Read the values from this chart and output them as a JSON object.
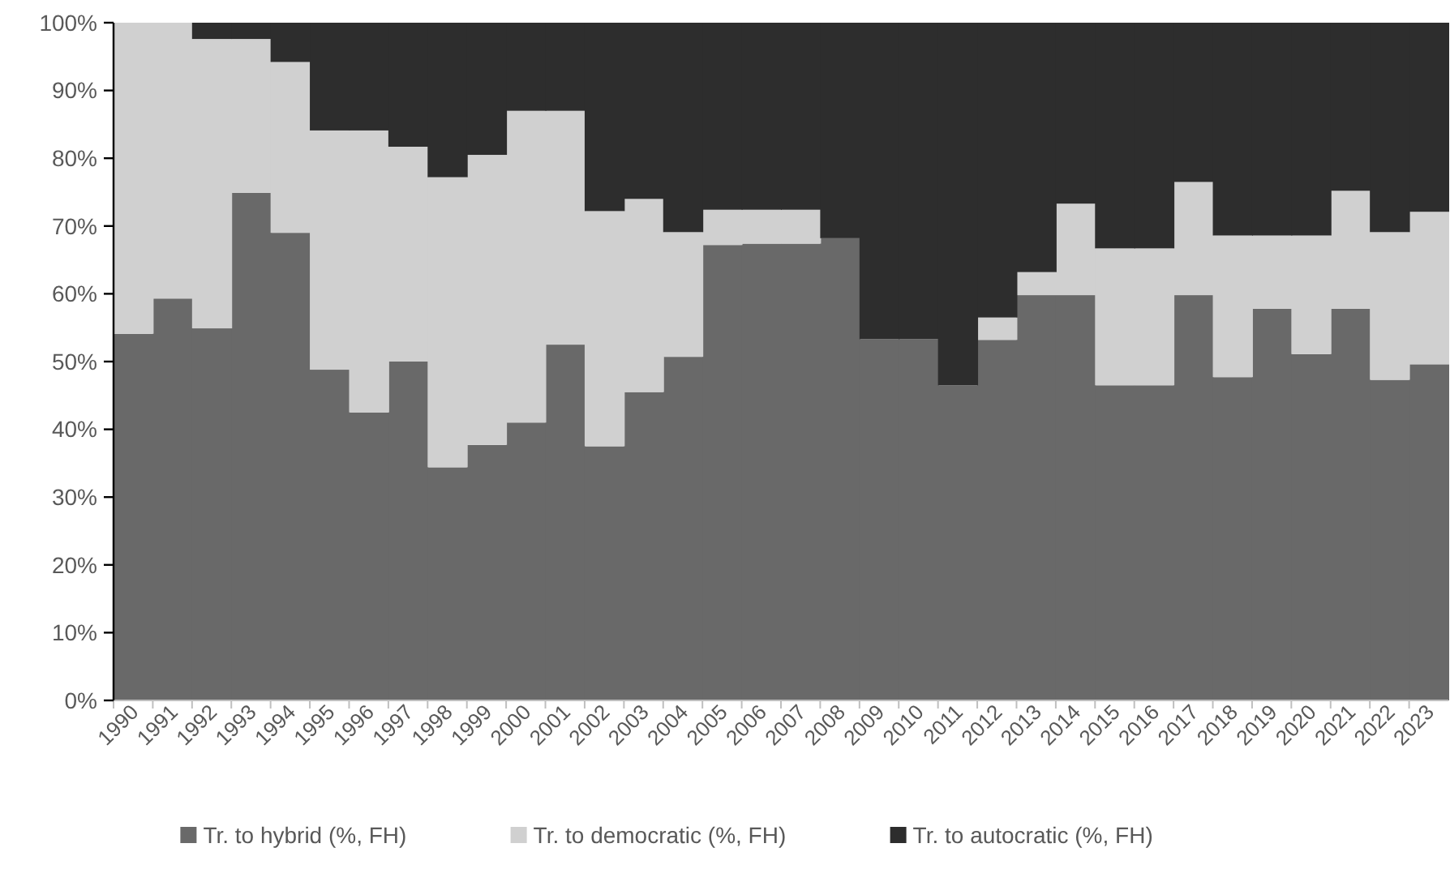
{
  "chart_data": {
    "type": "bar",
    "stacked": true,
    "categories": [
      "1990",
      "1991",
      "1992",
      "1993",
      "1994",
      "1995",
      "1996",
      "1997",
      "1998",
      "1999",
      "2000",
      "2001",
      "2002",
      "2003",
      "2004",
      "2005",
      "2006",
      "2007",
      "2008",
      "2009",
      "2010",
      "2011",
      "2012",
      "2013",
      "2014",
      "2015",
      "2016",
      "2017",
      "2018",
      "2019",
      "2020",
      "2021",
      "2022",
      "2023"
    ],
    "series": [
      {
        "name": "Tr. to hybrid (%, FH)",
        "color": "#696969",
        "values": [
          54.1,
          59.3,
          54.9,
          74.9,
          69.0,
          48.8,
          42.5,
          50.0,
          34.4,
          37.7,
          41.0,
          52.5,
          37.5,
          45.5,
          50.7,
          67.2,
          67.4,
          67.4,
          68.2,
          53.3,
          53.3,
          46.5,
          53.2,
          59.8,
          59.8,
          46.5,
          46.5,
          59.8,
          47.7,
          57.8,
          51.1,
          57.8,
          47.3,
          49.6
        ]
      },
      {
        "name": "Tr. to democratic (%, FH)",
        "color": "#d0d0d0",
        "values": [
          45.9,
          40.7,
          42.7,
          22.7,
          25.2,
          35.3,
          41.6,
          31.7,
          42.8,
          42.8,
          46.0,
          34.5,
          34.7,
          28.5,
          18.4,
          5.2,
          5.0,
          5.0,
          0,
          0,
          0,
          0,
          3.3,
          3.4,
          13.5,
          20.2,
          20.2,
          16.7,
          20.9,
          10.8,
          17.5,
          17.4,
          21.8,
          22.5
        ]
      },
      {
        "name": "Tr. to autocratic (%, FH)",
        "color": "#2d2d2d",
        "values": [
          0,
          0,
          2.4,
          2.4,
          5.8,
          15.9,
          15.9,
          18.3,
          22.8,
          19.5,
          13.0,
          13.0,
          27.8,
          26.0,
          30.9,
          27.6,
          27.6,
          27.6,
          31.8,
          46.7,
          46.7,
          53.5,
          43.5,
          36.8,
          26.7,
          33.3,
          33.3,
          23.5,
          31.4,
          31.4,
          31.4,
          24.8,
          30.9,
          27.9
        ]
      }
    ],
    "ylim": [
      0,
      100
    ],
    "yticks": [
      {
        "value": 0,
        "label": "0%"
      },
      {
        "value": 10,
        "label": "10%"
      },
      {
        "value": 20,
        "label": "20%"
      },
      {
        "value": 30,
        "label": "30%"
      },
      {
        "value": 40,
        "label": "40%"
      },
      {
        "value": 50,
        "label": "50%"
      },
      {
        "value": 60,
        "label": "60%"
      },
      {
        "value": 70,
        "label": "70%"
      },
      {
        "value": 80,
        "label": "80%"
      },
      {
        "value": 90,
        "label": "90%"
      },
      {
        "value": 100,
        "label": "100%"
      }
    ],
    "grid": false,
    "legend": "bottom"
  }
}
